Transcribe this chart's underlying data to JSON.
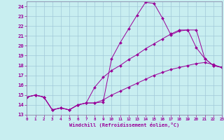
{
  "xlabel": "Windchill (Refroidissement éolien,°C)",
  "xlim": [
    0,
    23
  ],
  "ylim": [
    13,
    24.5
  ],
  "yticks": [
    13,
    14,
    15,
    16,
    17,
    18,
    19,
    20,
    21,
    22,
    23,
    24
  ],
  "xticks": [
    0,
    1,
    2,
    3,
    4,
    5,
    6,
    7,
    8,
    9,
    10,
    11,
    12,
    13,
    14,
    15,
    16,
    17,
    18,
    19,
    20,
    21,
    22,
    23
  ],
  "bg_color": "#c8eef0",
  "grid_color": "#a0c8d8",
  "line_color": "#990099",
  "line1_x": [
    0,
    1,
    2,
    3,
    4,
    5,
    6,
    7,
    8,
    9,
    10,
    11,
    12,
    13,
    14,
    15,
    16,
    17,
    18,
    19,
    20,
    21,
    22,
    23
  ],
  "line1_y": [
    14.8,
    15.0,
    14.8,
    13.5,
    13.7,
    13.5,
    14.0,
    14.2,
    14.2,
    14.3,
    18.7,
    20.3,
    21.7,
    23.1,
    24.4,
    24.3,
    22.8,
    21.1,
    21.5,
    21.6,
    21.6,
    18.7,
    18.0,
    17.8
  ],
  "line2_x": [
    0,
    1,
    2,
    3,
    4,
    5,
    6,
    7,
    8,
    9,
    10,
    11,
    12,
    13,
    14,
    15,
    16,
    17,
    18,
    19,
    20,
    21,
    22,
    23
  ],
  "line2_y": [
    14.8,
    15.0,
    14.8,
    13.5,
    13.7,
    13.5,
    14.0,
    14.2,
    15.8,
    16.8,
    17.5,
    18.0,
    18.6,
    19.1,
    19.7,
    20.2,
    20.7,
    21.2,
    21.6,
    21.6,
    19.8,
    18.7,
    18.0,
    17.8
  ],
  "line3_x": [
    0,
    1,
    2,
    3,
    4,
    5,
    6,
    7,
    8,
    9,
    10,
    11,
    12,
    13,
    14,
    15,
    16,
    17,
    18,
    19,
    20,
    21,
    22,
    23
  ],
  "line3_y": [
    14.8,
    15.0,
    14.8,
    13.5,
    13.7,
    13.5,
    14.0,
    14.2,
    14.2,
    14.5,
    15.0,
    15.4,
    15.8,
    16.2,
    16.6,
    17.0,
    17.3,
    17.6,
    17.8,
    18.0,
    18.2,
    18.3,
    18.1,
    17.8
  ]
}
